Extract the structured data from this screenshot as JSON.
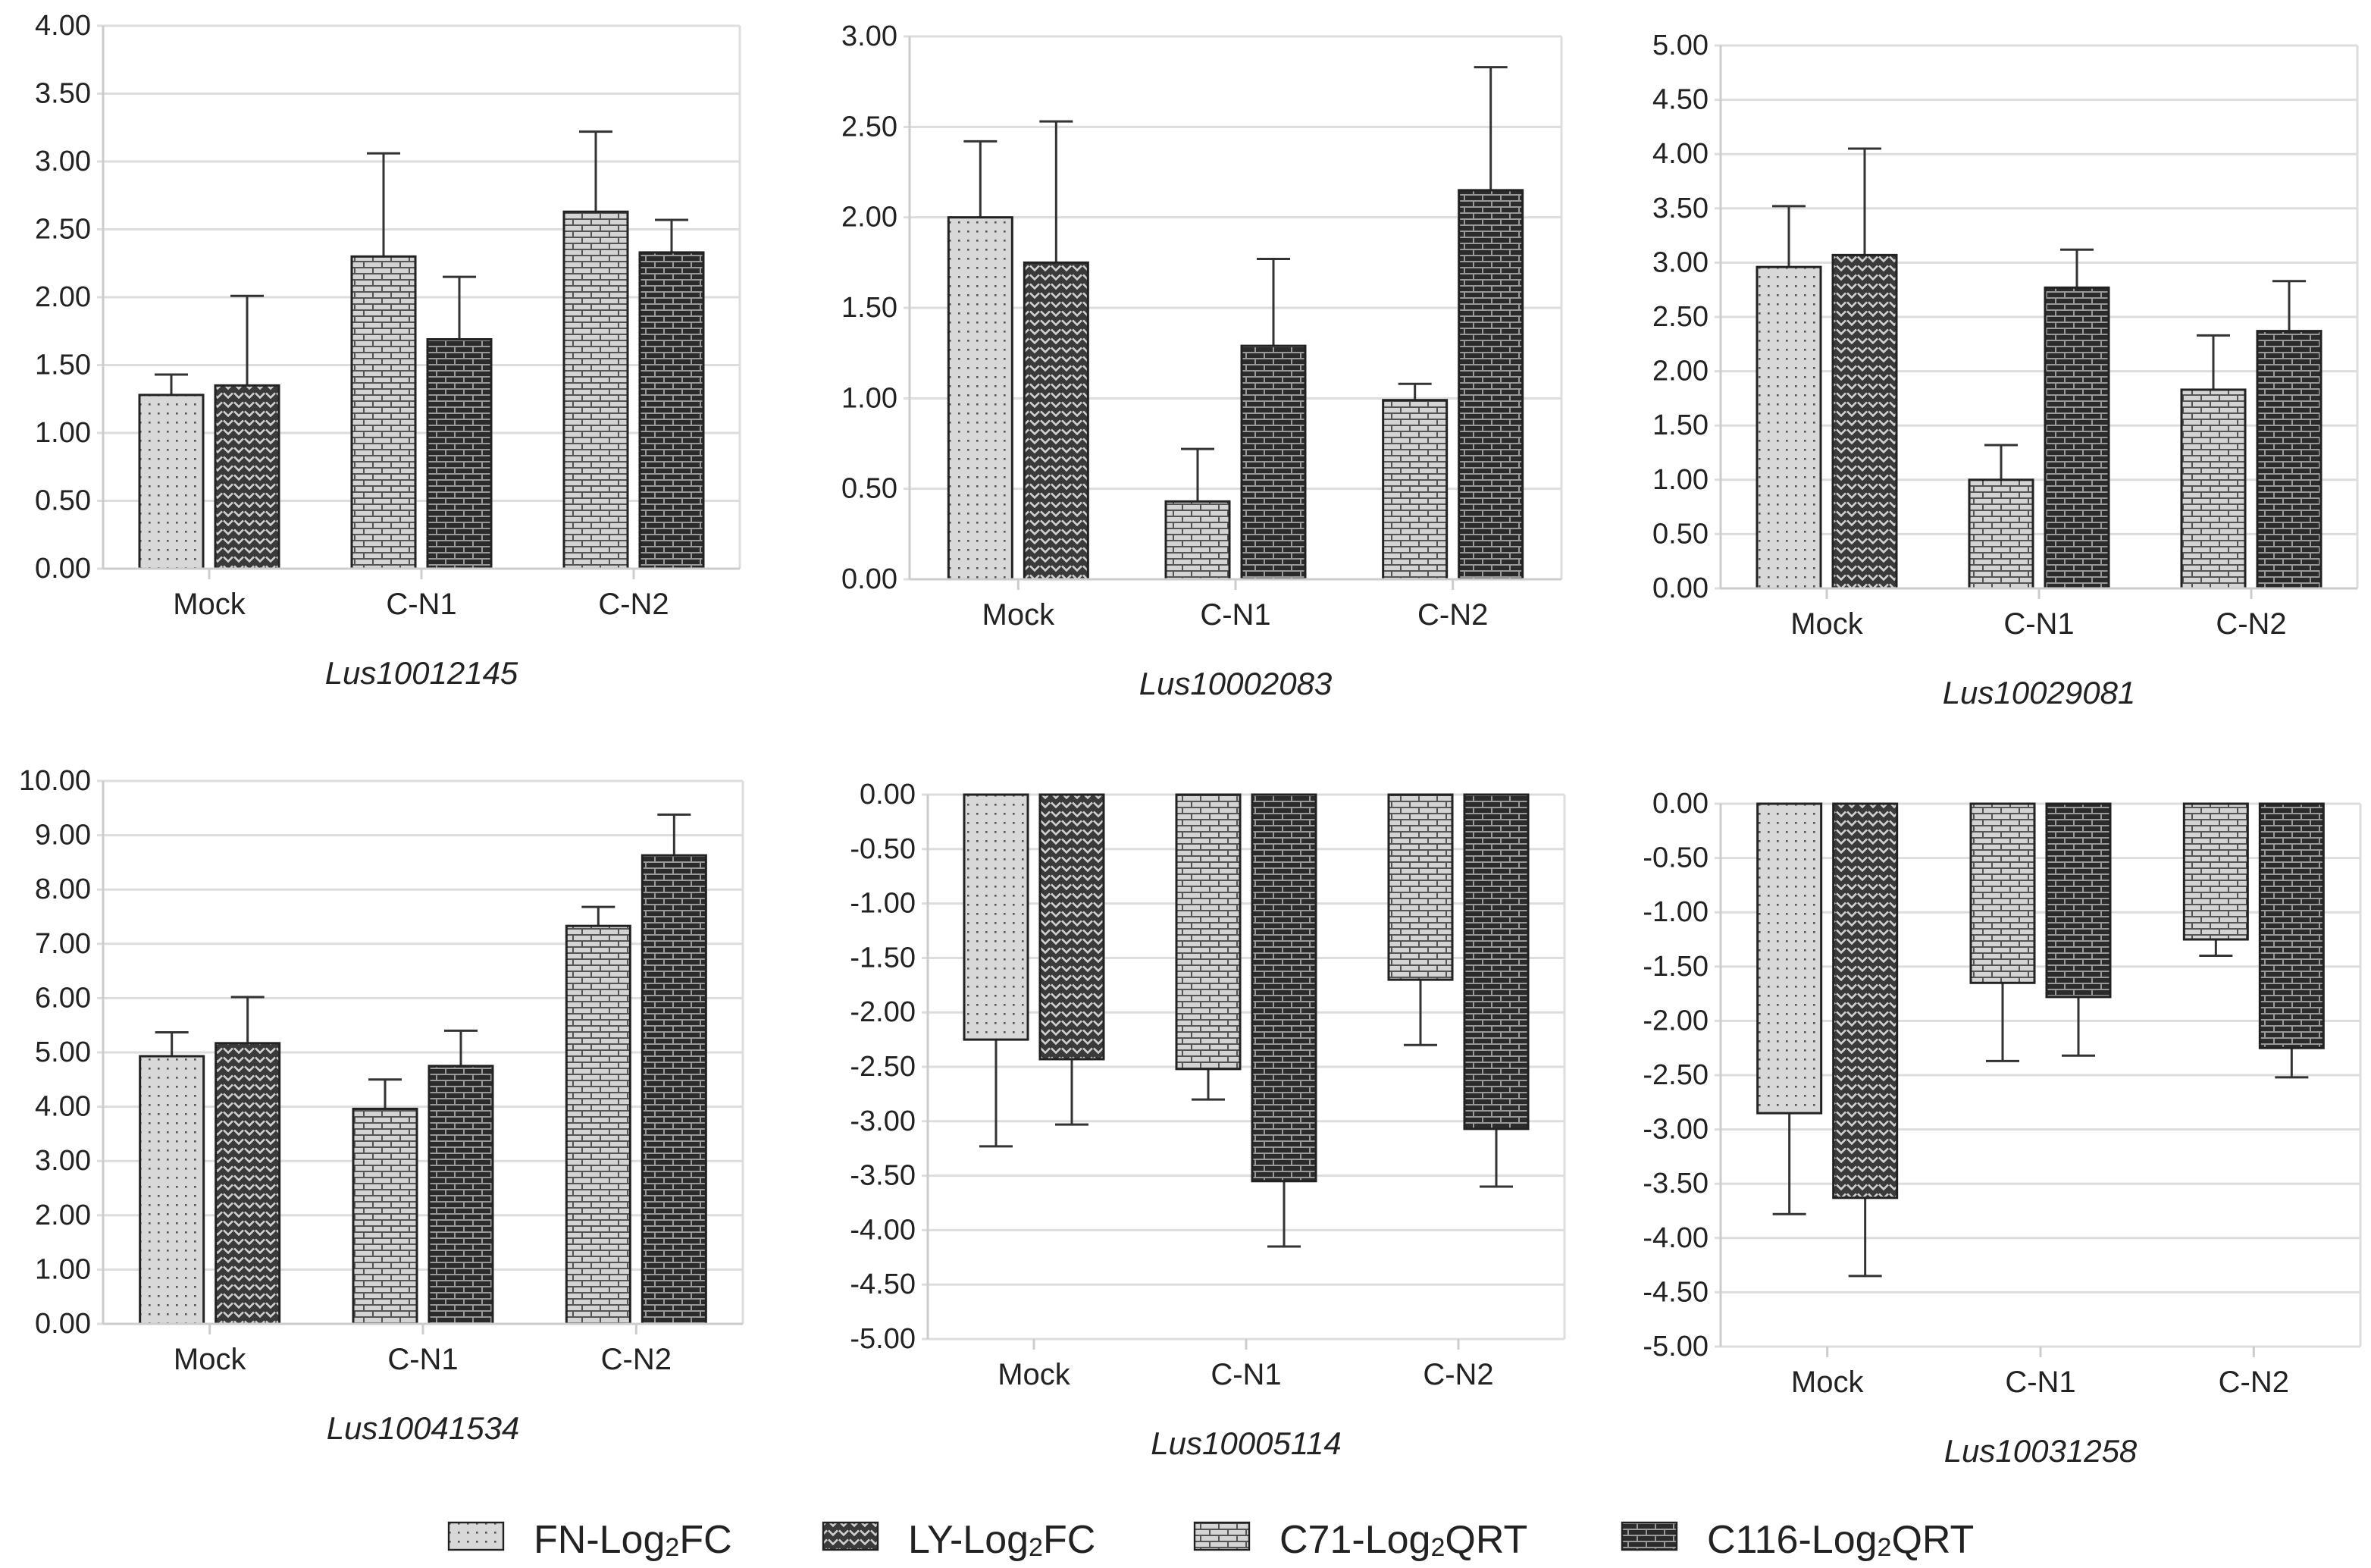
{
  "legend": [
    {
      "key": "FN",
      "prefix": "FN-Log",
      "sub": "2",
      "suffix": "FC",
      "pattern": "dots"
    },
    {
      "key": "LY",
      "prefix": "LY-Log",
      "sub": "2",
      "suffix": "FC",
      "pattern": "weave"
    },
    {
      "key": "C71",
      "prefix": "C71-Log",
      "sub": "2",
      "suffix": "QRT",
      "pattern": "brickLight"
    },
    {
      "key": "C116",
      "prefix": "C116-Log",
      "sub": "2",
      "suffix": "QRT",
      "pattern": "brickDark"
    }
  ],
  "colors": {
    "light": "#d6d6d6",
    "dark": "#2b2b2b",
    "grid": "#dddddd",
    "axis": "#cccccc"
  },
  "chart_data": [
    {
      "type": "bar",
      "title": "Lus10012145",
      "ylim": [
        0,
        4
      ],
      "step": 0.5,
      "categories": [
        "Mock",
        "C-N1",
        "C-N2"
      ],
      "bars": [
        [
          {
            "s": "FN",
            "v": 1.28,
            "e": 1.43
          },
          {
            "s": "LY",
            "v": 1.35,
            "e": 2.01
          }
        ],
        [
          {
            "s": "C71",
            "v": 2.3,
            "e": 3.06
          },
          {
            "s": "C116",
            "v": 1.69,
            "e": 2.15
          }
        ],
        [
          {
            "s": "C71",
            "v": 2.63,
            "e": 3.22
          },
          {
            "s": "C116",
            "v": 2.33,
            "e": 2.57
          }
        ]
      ]
    },
    {
      "type": "bar",
      "title": "Lus10002083",
      "ylim": [
        0,
        3
      ],
      "step": 0.5,
      "categories": [
        "Mock",
        "C-N1",
        "C-N2"
      ],
      "bars": [
        [
          {
            "s": "FN",
            "v": 2.0,
            "e": 2.42
          },
          {
            "s": "LY",
            "v": 1.75,
            "e": 2.53
          }
        ],
        [
          {
            "s": "C71",
            "v": 0.43,
            "e": 0.72
          },
          {
            "s": "C116",
            "v": 1.29,
            "e": 1.77
          }
        ],
        [
          {
            "s": "C71",
            "v": 0.99,
            "e": 1.08
          },
          {
            "s": "C116",
            "v": 2.15,
            "e": 2.83
          }
        ]
      ]
    },
    {
      "type": "bar",
      "title": "Lus10029081",
      "ylim": [
        0,
        5
      ],
      "step": 0.5,
      "categories": [
        "Mock",
        "C-N1",
        "C-N2"
      ],
      "bars": [
        [
          {
            "s": "FN",
            "v": 2.96,
            "e": 3.52
          },
          {
            "s": "LY",
            "v": 3.07,
            "e": 4.05
          }
        ],
        [
          {
            "s": "C71",
            "v": 1.0,
            "e": 1.32
          },
          {
            "s": "C116",
            "v": 2.77,
            "e": 3.12
          }
        ],
        [
          {
            "s": "C71",
            "v": 1.83,
            "e": 2.33
          },
          {
            "s": "C116",
            "v": 2.37,
            "e": 2.83
          }
        ]
      ]
    },
    {
      "type": "bar",
      "title": "Lus10041534",
      "ylim": [
        0,
        10
      ],
      "step": 1,
      "categories": [
        "Mock",
        "C-N1",
        "C-N2"
      ],
      "bars": [
        [
          {
            "s": "FN",
            "v": 4.93,
            "e": 5.37
          },
          {
            "s": "LY",
            "v": 5.17,
            "e": 6.02
          }
        ],
        [
          {
            "s": "C71",
            "v": 3.96,
            "e": 4.5
          },
          {
            "s": "C116",
            "v": 4.75,
            "e": 5.4
          }
        ],
        [
          {
            "s": "C71",
            "v": 7.33,
            "e": 7.68
          },
          {
            "s": "C116",
            "v": 8.63,
            "e": 9.38
          }
        ]
      ]
    },
    {
      "type": "bar",
      "title": "Lus10005114",
      "ylim": [
        -5,
        0
      ],
      "step": 0.5,
      "categories": [
        "Mock",
        "C-N1",
        "C-N2"
      ],
      "bars": [
        [
          {
            "s": "FN",
            "v": -2.25,
            "e": -3.23
          },
          {
            "s": "LY",
            "v": -2.43,
            "e": -3.03
          }
        ],
        [
          {
            "s": "C71",
            "v": -2.52,
            "e": -2.8
          },
          {
            "s": "C116",
            "v": -3.55,
            "e": -4.15
          }
        ],
        [
          {
            "s": "C71",
            "v": -1.7,
            "e": -2.3
          },
          {
            "s": "C116",
            "v": -3.07,
            "e": -3.6
          }
        ]
      ]
    },
    {
      "type": "bar",
      "title": "Lus10031258",
      "ylim": [
        -5,
        0
      ],
      "step": 0.5,
      "categories": [
        "Mock",
        "C-N1",
        "C-N2"
      ],
      "bars": [
        [
          {
            "s": "FN",
            "v": -2.85,
            "e": -3.78
          },
          {
            "s": "LY",
            "v": -3.63,
            "e": -4.35
          }
        ],
        [
          {
            "s": "C71",
            "v": -1.65,
            "e": -2.37
          },
          {
            "s": "C116",
            "v": -1.78,
            "e": -2.32
          }
        ],
        [
          {
            "s": "C71",
            "v": -1.25,
            "e": -1.4
          },
          {
            "s": "C116",
            "v": -2.25,
            "e": -2.52
          }
        ]
      ]
    }
  ]
}
